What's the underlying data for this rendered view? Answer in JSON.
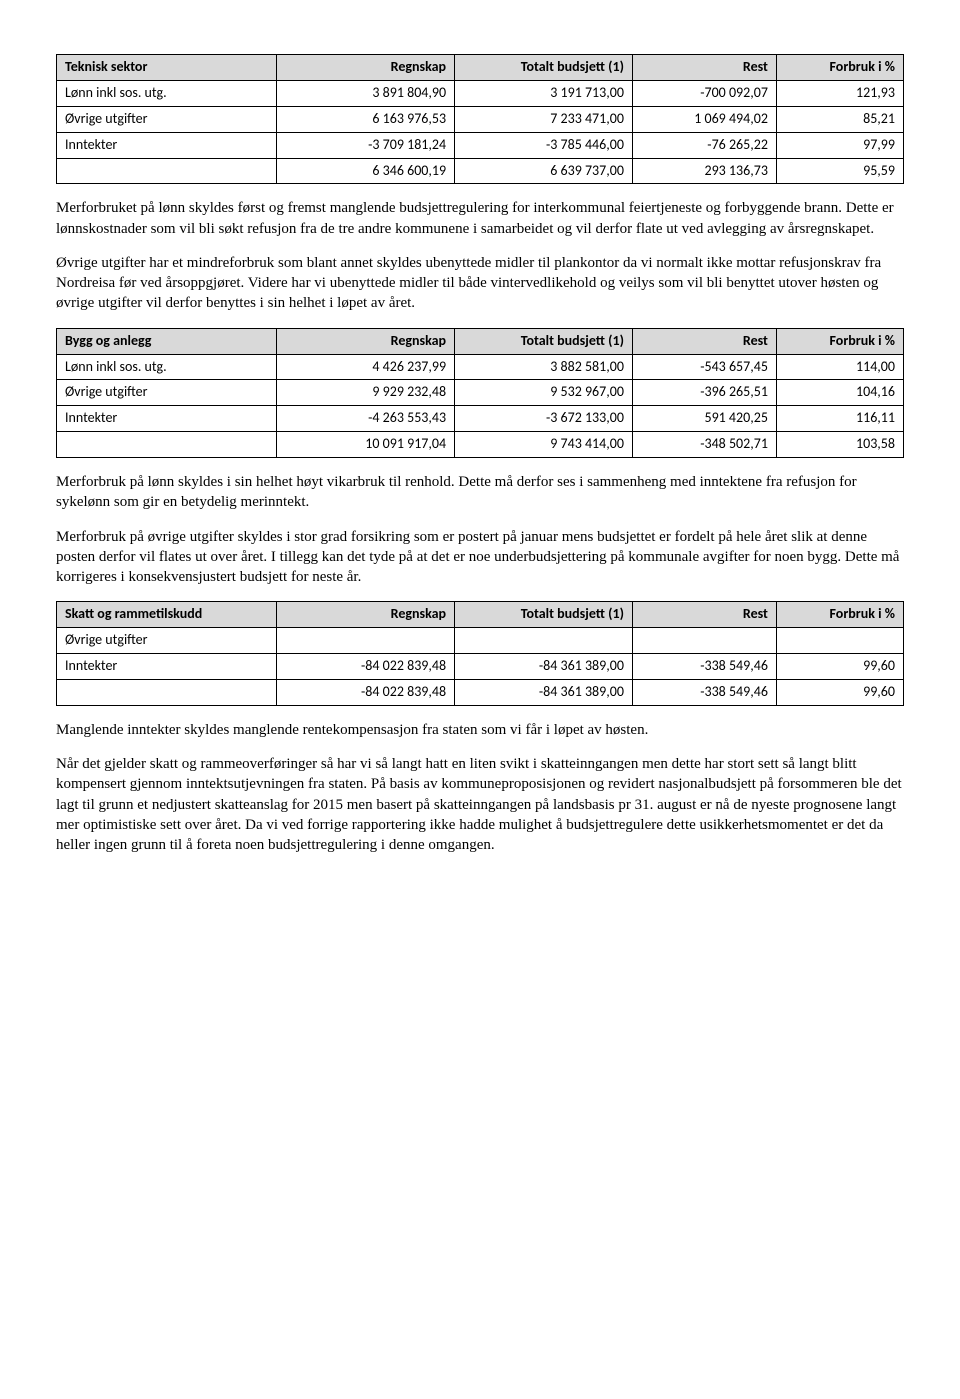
{
  "table1": {
    "headers": [
      "Teknisk sektor",
      "Regnskap",
      "Totalt budsjett (1)",
      "Rest",
      "Forbruk i %"
    ],
    "rows": [
      [
        "Lønn inkl sos. utg.",
        "3 891 804,90",
        "3 191 713,00",
        "-700 092,07",
        "121,93"
      ],
      [
        "Øvrige utgifter",
        "6 163 976,53",
        "7 233 471,00",
        "1 069 494,02",
        "85,21"
      ],
      [
        "Inntekter",
        "-3 709 181,24",
        "-3 785 446,00",
        "-76 265,22",
        "97,99"
      ],
      [
        "",
        "6 346 600,19",
        "6 639 737,00",
        "293 136,73",
        "95,59"
      ]
    ]
  },
  "para1": "Merforbruket på lønn skyldes først og fremst manglende budsjettregulering for interkommunal feiertjeneste og forbyggende brann. Dette er lønnskostnader som vil bli søkt refusjon fra de tre andre kommunene i samarbeidet og vil derfor flate ut ved avlegging av årsregnskapet.",
  "para2": "Øvrige utgifter har et mindreforbruk som blant annet skyldes ubenyttede midler til plankontor da vi normalt ikke mottar refusjonskrav fra Nordreisa før ved årsoppgjøret. Videre har vi ubenyttede midler til både vintervedlikehold og veilys som vil bli benyttet utover høsten og øvrige utgifter vil derfor benyttes i sin helhet i løpet av året.",
  "table2": {
    "headers": [
      "Bygg og anlegg",
      "Regnskap",
      "Totalt budsjett (1)",
      "Rest",
      "Forbruk i %"
    ],
    "rows": [
      [
        "Lønn inkl sos. utg.",
        "4 426 237,99",
        "3 882 581,00",
        "-543 657,45",
        "114,00"
      ],
      [
        "Øvrige utgifter",
        "9 929 232,48",
        "9 532 967,00",
        "-396 265,51",
        "104,16"
      ],
      [
        "Inntekter",
        "-4 263 553,43",
        "-3 672 133,00",
        "591 420,25",
        "116,11"
      ],
      [
        "",
        "10 091 917,04",
        "9 743 414,00",
        "-348 502,71",
        "103,58"
      ]
    ]
  },
  "para3": "Merforbruk på lønn skyldes i sin helhet høyt vikarbruk til renhold. Dette må derfor ses i sammenheng med inntektene fra refusjon for sykelønn som gir en betydelig merinntekt.",
  "para4": "Merforbruk på øvrige utgifter skyldes i stor grad forsikring som er postert på januar mens budsjettet er fordelt på hele året slik at denne posten derfor vil flates ut over året.  I tillegg kan det tyde på at det er noe underbudsjettering på kommunale avgifter for noen bygg. Dette må korrigeres i konsekvensjustert budsjett for neste år.",
  "table3": {
    "headers": [
      "Skatt og rammetilskudd",
      "Regnskap",
      "Totalt budsjett (1)",
      "Rest",
      "Forbruk i %"
    ],
    "rows": [
      [
        "Øvrige utgifter",
        "",
        "",
        "",
        ""
      ],
      [
        "Inntekter",
        "-84 022 839,48",
        "-84 361 389,00",
        "-338 549,46",
        "99,60"
      ],
      [
        "",
        "-84 022 839,48",
        "-84 361 389,00",
        "-338 549,46",
        "99,60"
      ]
    ]
  },
  "para5": "Manglende inntekter skyldes manglende rentekompensasjon fra staten som vi får i løpet av høsten.",
  "para6": "Når det gjelder skatt og rammeoverføringer så har vi så langt hatt en liten svikt i skatteinngangen men dette har stort sett så langt blitt kompensert gjennom inntektsutjevningen fra staten. På basis av kommuneproposisjonen og revidert nasjonalbudsjett på forsommeren ble det lagt til grunn et nedjustert skatteanslag for 2015 men basert på skatteinngangen på landsbasis pr 31. august er nå de nyeste prognosene langt mer optimistiske sett over året. Da vi ved forrige rapportering ikke hadde mulighet å budsjettregulere dette usikkerhetsmomentet er det da heller ingen grunn til å foreta noen budsjettregulering i denne omgangen."
}
